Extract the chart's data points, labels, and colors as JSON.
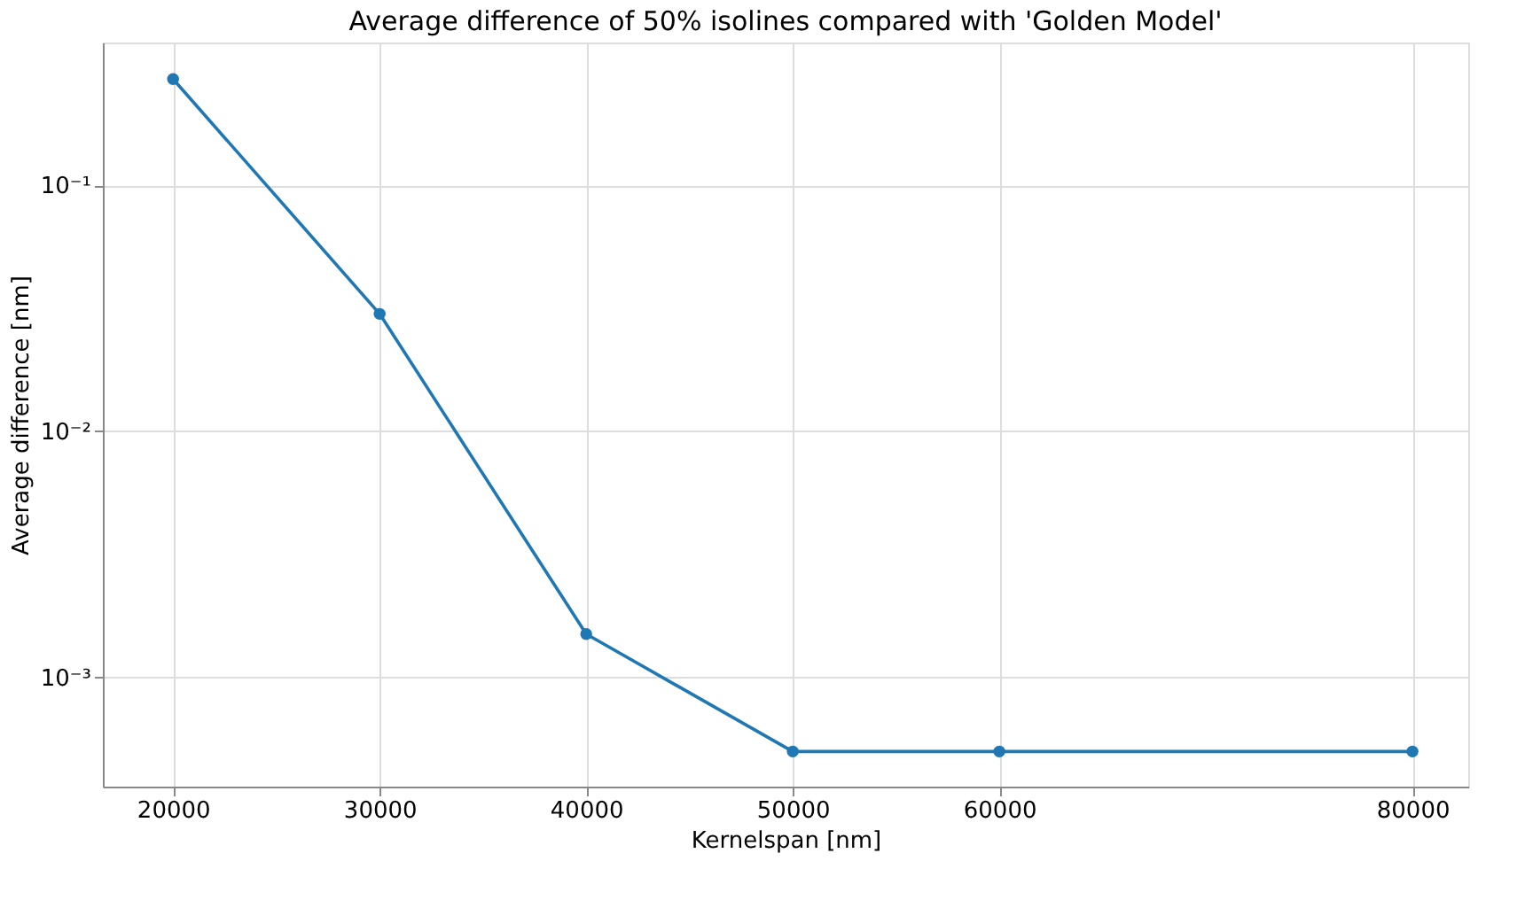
{
  "chart_data": {
    "type": "line",
    "title": "Average difference of 50% isolines compared with 'Golden Model'",
    "xlabel": "Kernelspan [nm]",
    "ylabel": "Average difference [nm]",
    "x": [
      20000,
      30000,
      40000,
      50000,
      60000,
      80000
    ],
    "series": [
      {
        "color": "#1f77b4",
        "values": [
          0.27,
          0.03,
          0.0015,
          0.0005,
          0.0005,
          0.0005
        ]
      }
    ],
    "xlim": [
      16600,
      82700
    ],
    "xticks": [
      20000,
      30000,
      40000,
      50000,
      60000,
      80000
    ],
    "ylim": [
      0.00036,
      0.38
    ],
    "yticks": [
      {
        "value": 0.001,
        "label": "10⁻³"
      },
      {
        "value": 0.01,
        "label": "10⁻²"
      },
      {
        "value": 0.1,
        "label": "10⁻¹"
      }
    ],
    "log": "y",
    "grid": true,
    "marker": "circle",
    "line_style": "solid"
  }
}
